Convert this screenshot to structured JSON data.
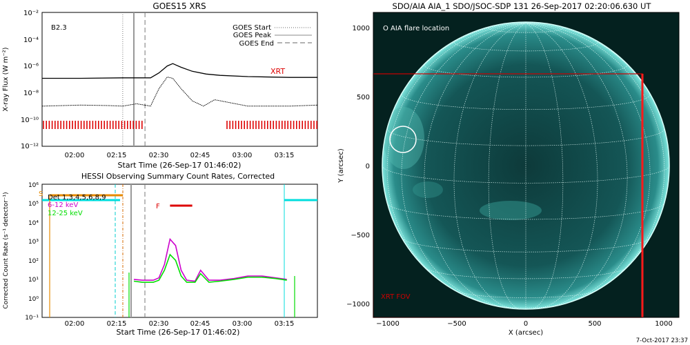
{
  "goes_panel": {
    "title": "GOES15 XRS",
    "xlabel": "Start Time (26-Sep-17 01:46:02)",
    "ylabel": "X-ray Flux (W m⁻²)",
    "class_label": "B2.3",
    "xrt_label": "XRT",
    "y_ticks": [
      "10⁻²",
      "10⁻⁴",
      "10⁻⁶",
      "10⁻⁸",
      "10⁻¹⁰",
      "10⁻¹²"
    ],
    "x_ticks": [
      "02:00",
      "02:15",
      "02:30",
      "02:45",
      "03:00",
      "03:15"
    ],
    "legend": [
      {
        "label": "GOES Start",
        "style": "dotted"
      },
      {
        "label": "GOES Peak",
        "style": "solid"
      },
      {
        "label": "GOES End",
        "style": "dashed"
      }
    ]
  },
  "hessi_panel": {
    "title": "HESSI Observing Summary Count Rates, Corrected",
    "xlabel": "Start Time (26-Sep-17 01:46:02)",
    "ylabel": "Corrected Count Rate (s⁻¹ detector⁻¹)",
    "y_ticks": [
      "10⁶",
      "10⁵",
      "10⁴",
      "10³",
      "10²",
      "10¹",
      "10⁰",
      "10⁻¹"
    ],
    "x_ticks": [
      "02:00",
      "02:15",
      "02:30",
      "02:45",
      "03:00",
      "03:15"
    ],
    "s_label": "S",
    "f_label": "F",
    "det_label": "Det 1,3,4,5,6,8,9",
    "series_labels": [
      {
        "label": "6-12 keV",
        "color": "#cc00cc"
      },
      {
        "label": "12-25 keV",
        "color": "#00dd00"
      }
    ]
  },
  "aia_panel": {
    "title": "SDO/AIA AIA_1 SDO/JSOC-SDP 131 26-Sep-2017 02:20:06.630 UT",
    "xlabel": "X (arcsec)",
    "ylabel": "Y (arcsec)",
    "flare_legend": "O AIA flare location",
    "fov_label": "XRT FOV",
    "x_ticks": [
      "−1000",
      "−500",
      "0",
      "500",
      "1000"
    ],
    "y_ticks": [
      "1000",
      "500",
      "0",
      "−500",
      "−1000"
    ],
    "footer": "7-Oct-2017 23:37"
  },
  "chart_data": [
    {
      "type": "line",
      "title": "GOES15 XRS",
      "xlabel": "Start Time (26-Sep-17 01:46:02)",
      "ylabel": "X-ray Flux (W m⁻²)",
      "y_scale": "log",
      "ylim": [
        1e-12,
        0.01
      ],
      "xlim": [
        "01:46",
        "03:25"
      ],
      "legend_position": "top-right",
      "vertical_markers": {
        "GOES Start": "02:15",
        "GOES Peak": "02:19",
        "GOES End": "02:23"
      },
      "series": [
        {
          "name": "",
          "color": "#000000",
          "x": [
            "01:46",
            "02:00",
            "02:15",
            "02:25",
            "02:28",
            "02:31",
            "02:33",
            "02:36",
            "02:40",
            "02:45",
            "02:50",
            "03:00",
            "03:15",
            "03:25"
          ],
          "y": [
            1.2e-07,
            1.2e-07,
            1.3e-07,
            1.3e-07,
            3e-07,
            1e-06,
            1.5e-06,
            8e-07,
            4e-07,
            2.5e-07,
            2e-07,
            1.6e-07,
            1.4e-07,
            1.4e-07
          ]
        },
        {
          "name": "",
          "color": "#000000",
          "x": [
            "01:46",
            "02:00",
            "02:10",
            "02:15",
            "02:20",
            "02:25",
            "02:28",
            "02:31",
            "02:33",
            "02:36",
            "02:40",
            "02:44",
            "02:48",
            "03:00",
            "03:15",
            "03:25"
          ],
          "y": [
            1e-09,
            1.2e-09,
            1.1e-09,
            1e-09,
            1.5e-09,
            1e-09,
            2e-08,
            1.5e-07,
            1.2e-07,
            2e-08,
            2.5e-09,
            1e-09,
            3e-09,
            1e-09,
            1e-09,
            1.2e-09
          ]
        }
      ],
      "xrt_observation_spans": [
        [
          "01:46",
          "02:22"
        ],
        [
          "02:52",
          "03:25"
        ]
      ]
    },
    {
      "type": "line",
      "title": "HESSI Observing Summary Count Rates, Corrected",
      "xlabel": "Start Time (26-Sep-17 01:46:02)",
      "ylabel": "Corrected Count Rate (s⁻¹ detector⁻¹)",
      "y_scale": "log",
      "ylim": [
        0.1,
        1000000.0
      ],
      "xlim": [
        "01:46",
        "03:25"
      ],
      "series": [
        {
          "name": "6-12 keV",
          "color": "#cc00cc",
          "x": [
            "02:19",
            "02:22",
            "02:26",
            "02:28",
            "02:30",
            "02:32",
            "02:34",
            "02:36",
            "02:38",
            "02:41",
            "02:43",
            "02:46",
            "02:50",
            "02:55",
            "03:00",
            "03:05",
            "03:10",
            "03:14"
          ],
          "y": [
            10,
            9,
            9,
            12,
            60,
            1300,
            600,
            30,
            9,
            8,
            30,
            9,
            9,
            11,
            15,
            15,
            12,
            10
          ]
        },
        {
          "name": "12-25 keV",
          "color": "#00dd00",
          "x": [
            "02:19",
            "02:22",
            "02:26",
            "02:28",
            "02:30",
            "02:32",
            "02:34",
            "02:36",
            "02:38",
            "02:41",
            "02:43",
            "02:46",
            "02:50",
            "02:55",
            "03:00",
            "03:05",
            "03:10",
            "03:14"
          ],
          "y": [
            8,
            7,
            7,
            9,
            30,
            200,
            100,
            15,
            7,
            7,
            20,
            7,
            8,
            10,
            13,
            13,
            11,
            9
          ]
        }
      ],
      "attenuator_states": {
        "S": [
          "01:46",
          "02:17"
        ],
        "F": [
          "02:32",
          "02:40"
        ]
      }
    }
  ]
}
